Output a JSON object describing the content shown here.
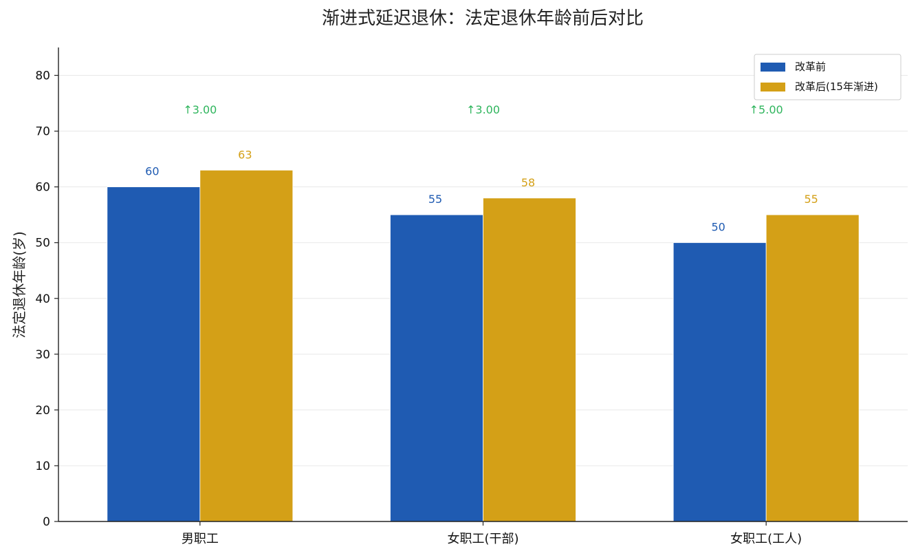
{
  "chart_data": {
    "type": "bar",
    "title": "渐进式延迟退休：法定退休年龄前后对比",
    "xlabel": "",
    "ylabel": "法定退休年龄(岁)",
    "categories": [
      "男职工",
      "女职工(干部)",
      "女职工(工人)"
    ],
    "series": [
      {
        "name": "改革前",
        "values": [
          60,
          55,
          50
        ],
        "labels": [
          "60",
          "55",
          "50"
        ],
        "color": "#1f5bb2"
      },
      {
        "name": "改革后(15年渐进)",
        "values": [
          63,
          58,
          55
        ],
        "labels": [
          "63",
          "58",
          "55"
        ],
        "color": "#d4a017"
      }
    ],
    "increase_labels": [
      "↑3.00",
      "↑3.00",
      "↑5.00"
    ],
    "increase_color": "#2fb55d",
    "ylim": [
      0,
      85
    ],
    "yticks": [
      0,
      10,
      20,
      30,
      40,
      50,
      60,
      70,
      80
    ],
    "ytick_labels": [
      "0",
      "10",
      "20",
      "30",
      "40",
      "50",
      "60",
      "70",
      "80"
    ],
    "grid": true,
    "legend_position": "top-right"
  }
}
